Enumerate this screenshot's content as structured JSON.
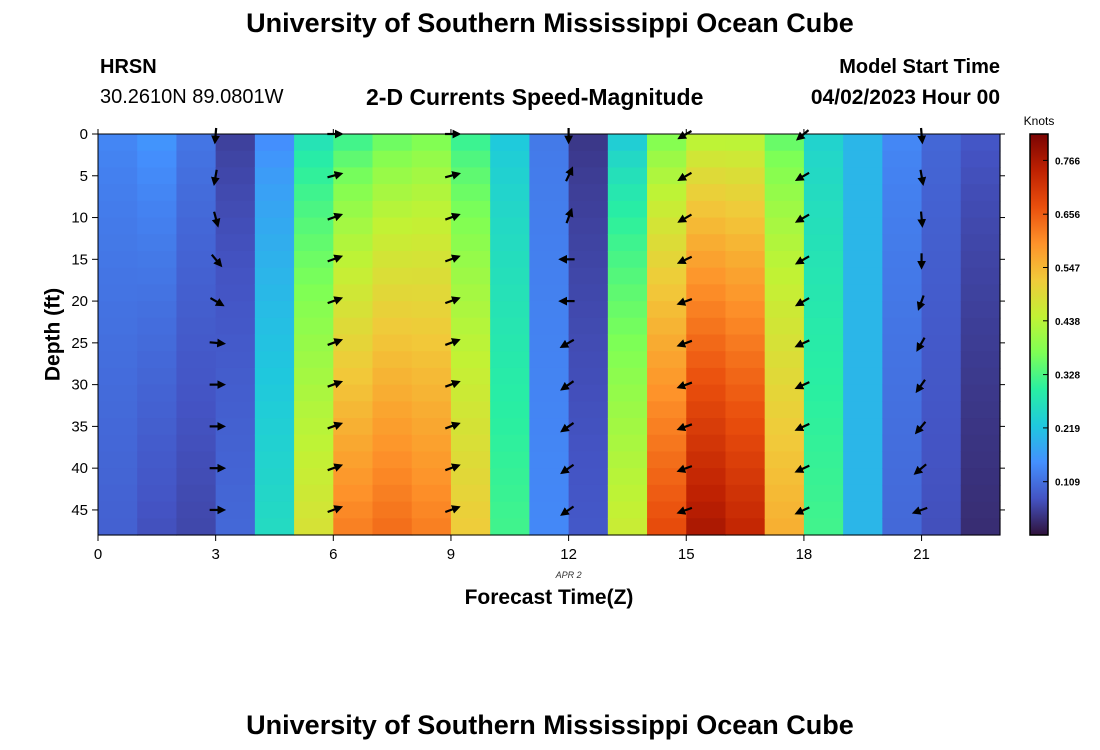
{
  "header": {
    "title": "University of Southern Mississippi Ocean Cube",
    "station": "HRSN",
    "coords": "30.2610N  89.0801W",
    "subtitle": "2-D Currents Speed-Magnitude",
    "model_label": "Model Start Time",
    "model_time": "04/02/2023 Hour 00"
  },
  "footer": {
    "title": "University of Southern Mississippi Ocean Cube"
  },
  "chart_data": {
    "type": "heatmap",
    "title": "2-D Currents Speed-Magnitude",
    "xlabel": "Forecast Time(Z)",
    "ylabel": "Depth (ft)",
    "date_label": "APR 2",
    "xlim": [
      0,
      23
    ],
    "ylim": [
      0,
      48
    ],
    "y_inverted": true,
    "x_ticks": [
      0,
      3,
      6,
      9,
      12,
      15,
      18,
      21
    ],
    "y_ticks": [
      0,
      5,
      10,
      15,
      20,
      25,
      30,
      35,
      40,
      45
    ],
    "colorbar": {
      "label": "Knots",
      "min": 0,
      "max": 0.82,
      "ticks": [
        "0.766",
        "0.656",
        "0.547",
        "0.438",
        "0.328",
        "0.219",
        "0.109"
      ],
      "colormap": [
        "#30123b",
        "#4454c4",
        "#4490fe",
        "#1fc8de",
        "#29efa2",
        "#7eff55",
        "#c2f234",
        "#f1ca3a",
        "#fe922a",
        "#ea4f0d",
        "#be2102",
        "#7a0403"
      ]
    },
    "speed_knots_by_hour": [
      {
        "hour": 0,
        "surface": 0.14,
        "bottom": 0.09
      },
      {
        "hour": 1,
        "surface": 0.16,
        "bottom": 0.07
      },
      {
        "hour": 2,
        "surface": 0.12,
        "bottom": 0.06
      },
      {
        "hour": 3,
        "surface": 0.05,
        "bottom": 0.1
      },
      {
        "hour": 4,
        "surface": 0.14,
        "bottom": 0.26
      },
      {
        "hour": 5,
        "surface": 0.26,
        "bottom": 0.48
      },
      {
        "hour": 6,
        "surface": 0.3,
        "bottom": 0.62
      },
      {
        "hour": 7,
        "surface": 0.34,
        "bottom": 0.64
      },
      {
        "hour": 8,
        "surface": 0.36,
        "bottom": 0.62
      },
      {
        "hour": 9,
        "surface": 0.3,
        "bottom": 0.52
      },
      {
        "hour": 10,
        "surface": 0.22,
        "bottom": 0.32
      },
      {
        "hour": 11,
        "surface": 0.12,
        "bottom": 0.14
      },
      {
        "hour": 12,
        "surface": 0.04,
        "bottom": 0.08
      },
      {
        "hour": 13,
        "surface": 0.22,
        "bottom": 0.46
      },
      {
        "hour": 14,
        "surface": 0.36,
        "bottom": 0.68
      },
      {
        "hour": 15,
        "surface": 0.42,
        "bottom": 0.77
      },
      {
        "hour": 16,
        "surface": 0.42,
        "bottom": 0.74
      },
      {
        "hour": 17,
        "surface": 0.34,
        "bottom": 0.56
      },
      {
        "hour": 18,
        "surface": 0.24,
        "bottom": 0.32
      },
      {
        "hour": 19,
        "surface": 0.2,
        "bottom": 0.2
      },
      {
        "hour": 20,
        "surface": 0.14,
        "bottom": 0.1
      },
      {
        "hour": 21,
        "surface": 0.1,
        "bottom": 0.07
      },
      {
        "hour": 22,
        "surface": 0.08,
        "bottom": 0.03
      }
    ],
    "vectors": {
      "depths": [
        0,
        5,
        10,
        15,
        20,
        25,
        30,
        35,
        40,
        45
      ],
      "columns": [
        {
          "hour": 3,
          "direction_deg": [
            185,
            190,
            165,
            140,
            120,
            95,
            90,
            90,
            90,
            90
          ]
        },
        {
          "hour": 6,
          "direction_deg": [
            90,
            75,
            70,
            70,
            70,
            70,
            70,
            70,
            70,
            70
          ]
        },
        {
          "hour": 9,
          "direction_deg": [
            90,
            75,
            70,
            70,
            70,
            70,
            70,
            70,
            70,
            70
          ]
        },
        {
          "hour": 12,
          "direction_deg": [
            180,
            25,
            20,
            270,
            270,
            240,
            235,
            235,
            235,
            235
          ]
        },
        {
          "hour": 15,
          "direction_deg": [
            240,
            240,
            240,
            245,
            250,
            250,
            250,
            250,
            250,
            250
          ]
        },
        {
          "hour": 18,
          "direction_deg": [
            230,
            240,
            240,
            240,
            240,
            245,
            245,
            245,
            245,
            245
          ]
        },
        {
          "hour": 21,
          "direction_deg": [
            175,
            170,
            175,
            180,
            200,
            210,
            215,
            220,
            230,
            250
          ]
        }
      ]
    }
  }
}
